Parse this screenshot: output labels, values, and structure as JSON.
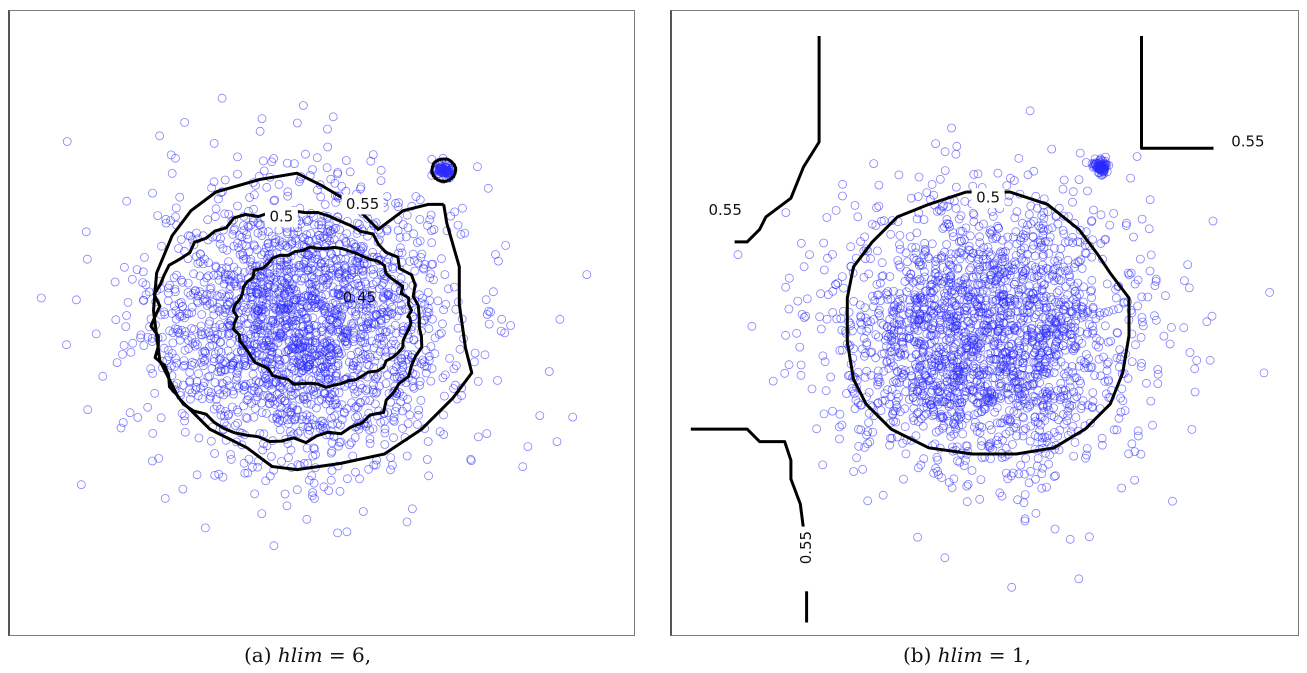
{
  "chart_data": [
    {
      "type": "scatter",
      "panel": "a",
      "caption_prefix": "(a) ",
      "caption_var": "hlim",
      "caption_rest": " = 6,",
      "xlim": [
        0,
        100
      ],
      "ylim": [
        0,
        100
      ],
      "grid": false,
      "point_color": "#2b2bff",
      "line_color": "#000000",
      "clusters": [
        {
          "center": [
            47,
            50
          ],
          "spread": [
            12,
            11
          ],
          "count": 2200
        },
        {
          "center": [
            69.5,
            74.5
          ],
          "spread": [
            0.7,
            0.6
          ],
          "count": 80
        }
      ],
      "contours": [
        {
          "level": 0.45,
          "label": "0.45",
          "label_pos": [
            56,
            46
          ]
        },
        {
          "level": 0.5,
          "label": "0.5",
          "label_pos": [
            43.5,
            33
          ]
        },
        {
          "level": 0.55,
          "label": "0.55",
          "label_pos": [
            56.5,
            31
          ]
        }
      ]
    },
    {
      "type": "scatter",
      "panel": "b",
      "caption_prefix": "(b) ",
      "caption_var": "hlim",
      "caption_rest": " = 1,",
      "xlim": [
        0,
        100
      ],
      "ylim": [
        0,
        100
      ],
      "grid": false,
      "point_color": "#2b2bff",
      "line_color": "#000000",
      "clusters": [
        {
          "center": [
            50,
            48
          ],
          "spread": [
            12,
            11
          ],
          "count": 2200
        },
        {
          "center": [
            68.5,
            75
          ],
          "spread": [
            0.7,
            0.6
          ],
          "count": 80
        }
      ],
      "contours": [
        {
          "level": 0.5,
          "label": "0.5",
          "label_pos": [
            50.5,
            30
          ]
        },
        {
          "level": 0.55,
          "label": "0.55",
          "label_pos": [
            92,
            21
          ]
        },
        {
          "level": 0.55,
          "label": "0.55",
          "label_pos": [
            8.5,
            32
          ]
        },
        {
          "level": 0.55,
          "label": "0.55",
          "label_pos": [
            21.5,
            86
          ]
        }
      ]
    }
  ]
}
